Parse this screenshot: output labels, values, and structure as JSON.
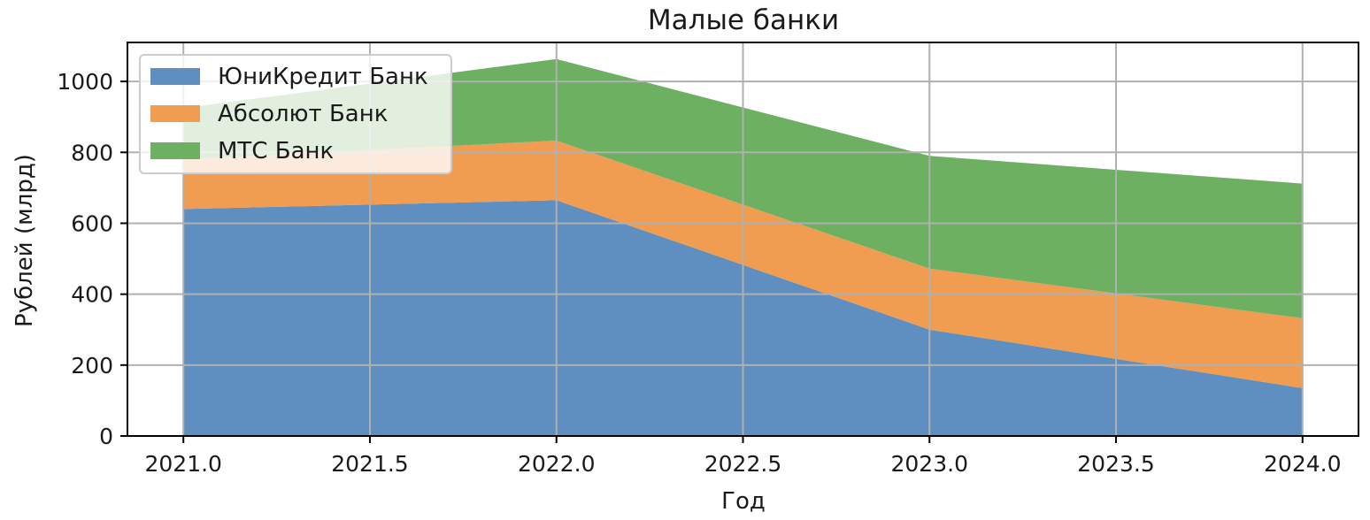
{
  "chart_data": {
    "type": "area",
    "stacked": true,
    "title": "Малые банки",
    "xlabel": "Год",
    "ylabel": "Рублей (млрд)",
    "x": [
      2021,
      2022,
      2023,
      2024
    ],
    "xlim": [
      2020.85,
      2024.15
    ],
    "ylim": [
      0,
      1110
    ],
    "xticks": [
      2021.0,
      2021.5,
      2022.0,
      2022.5,
      2023.0,
      2023.5,
      2024.0
    ],
    "xtick_labels": [
      "2021.0",
      "2021.5",
      "2022.0",
      "2022.5",
      "2023.0",
      "2023.5",
      "2024.0"
    ],
    "yticks": [
      0,
      200,
      400,
      600,
      800,
      1000
    ],
    "ytick_labels": [
      "0",
      "200",
      "400",
      "600",
      "800",
      "1000"
    ],
    "grid": true,
    "legend_position": "upper-left",
    "series": [
      {
        "name": "ЮниКредит Банк",
        "values": [
          640,
          665,
          300,
          135
        ],
        "color": "#5e8fc0"
      },
      {
        "name": "Абсолют Банк",
        "values": [
          140,
          168,
          172,
          197
        ],
        "color": "#f09d51"
      },
      {
        "name": "МТС Банк",
        "values": [
          145,
          230,
          318,
          380
        ],
        "color": "#6db062"
      }
    ]
  }
}
